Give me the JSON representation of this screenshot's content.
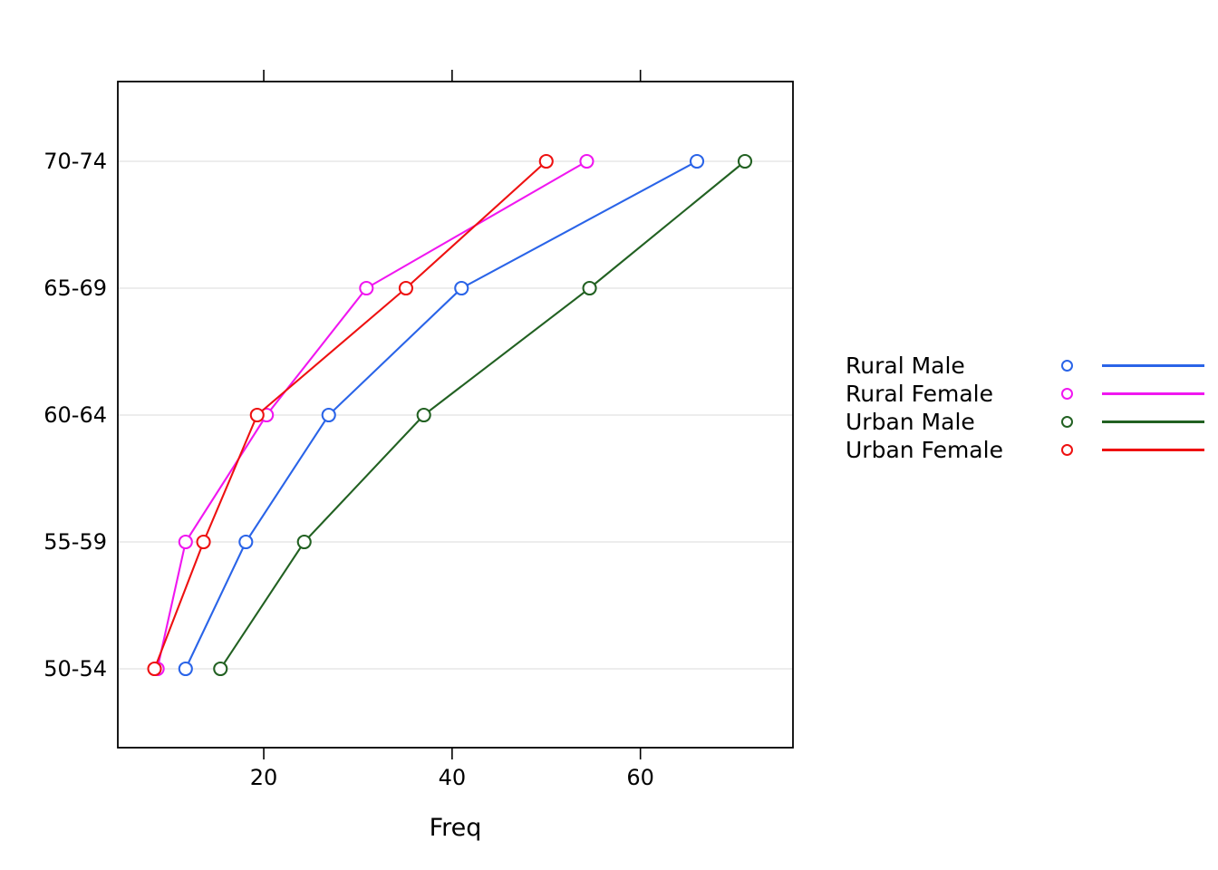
{
  "chart_data": {
    "type": "line",
    "title": "",
    "xlabel": "Freq",
    "ylabel": "",
    "categories": [
      "50-54",
      "55-59",
      "60-64",
      "65-69",
      "70-74"
    ],
    "x_ticks": [
      20,
      40,
      60
    ],
    "xlim": [
      4.5,
      76.2
    ],
    "grid": "horizontal-light-gray",
    "gridline_color": "#e2e2e2",
    "marker": "open-circle",
    "legend_position": "right",
    "series": [
      {
        "name": "Rural Male",
        "color": "#2A64E8",
        "values": [
          11.7,
          18.1,
          26.9,
          41.0,
          66.0
        ]
      },
      {
        "name": "Rural Female",
        "color": "#F017F0",
        "values": [
          8.7,
          11.7,
          20.3,
          30.9,
          54.3
        ]
      },
      {
        "name": "Urban Male",
        "color": "#226122",
        "values": [
          15.4,
          24.3,
          37.0,
          54.6,
          71.1
        ]
      },
      {
        "name": "Urban Female",
        "color": "#EE1111",
        "values": [
          8.4,
          13.6,
          19.3,
          35.1,
          50.0
        ]
      }
    ]
  }
}
